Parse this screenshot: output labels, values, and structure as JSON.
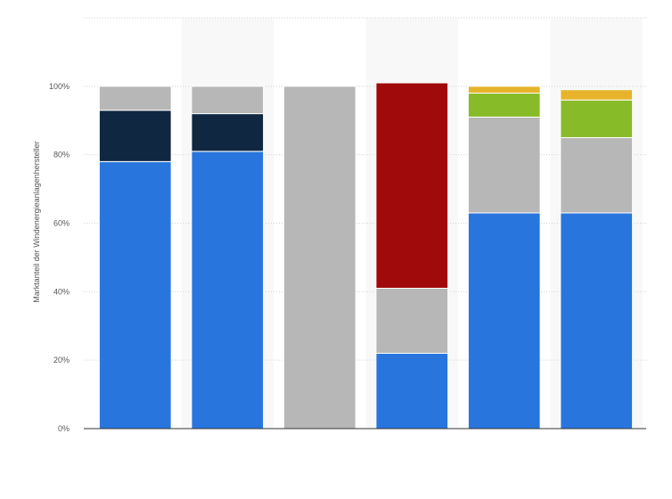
{
  "chart_data": {
    "type": "bar",
    "stacked": true,
    "title": "",
    "xlabel": "",
    "ylabel": "Marktanteil der Windenergieanlagenhersteller",
    "ylim": [
      0,
      120
    ],
    "y_ticks": [
      "0%",
      "20%",
      "40%",
      "60%",
      "80%",
      "100%"
    ],
    "y_tick_values": [
      0,
      20,
      40,
      60,
      80,
      100
    ],
    "grid": true,
    "categories": [
      "",
      "",
      "",
      "",
      "",
      ""
    ],
    "series": [
      {
        "color": "#2876dd",
        "values": [
          78,
          81,
          0,
          22,
          63,
          63
        ]
      },
      {
        "color": "#b7b7b7",
        "values": [
          0,
          0,
          100,
          19,
          28,
          22
        ]
      },
      {
        "color": "#a10a0a",
        "values": [
          0,
          0,
          0,
          60,
          0,
          0
        ]
      },
      {
        "color": "#87bb28",
        "values": [
          0,
          0,
          0,
          0,
          7,
          11
        ]
      },
      {
        "color": "#0f2741",
        "values": [
          15,
          11,
          0,
          0,
          0,
          0
        ]
      },
      {
        "color": "#b7b7b7",
        "values": [
          7,
          8,
          0,
          0,
          0,
          0
        ]
      },
      {
        "color": "#e6b32b",
        "values": [
          0,
          0,
          0,
          0,
          2,
          3
        ]
      }
    ]
  }
}
